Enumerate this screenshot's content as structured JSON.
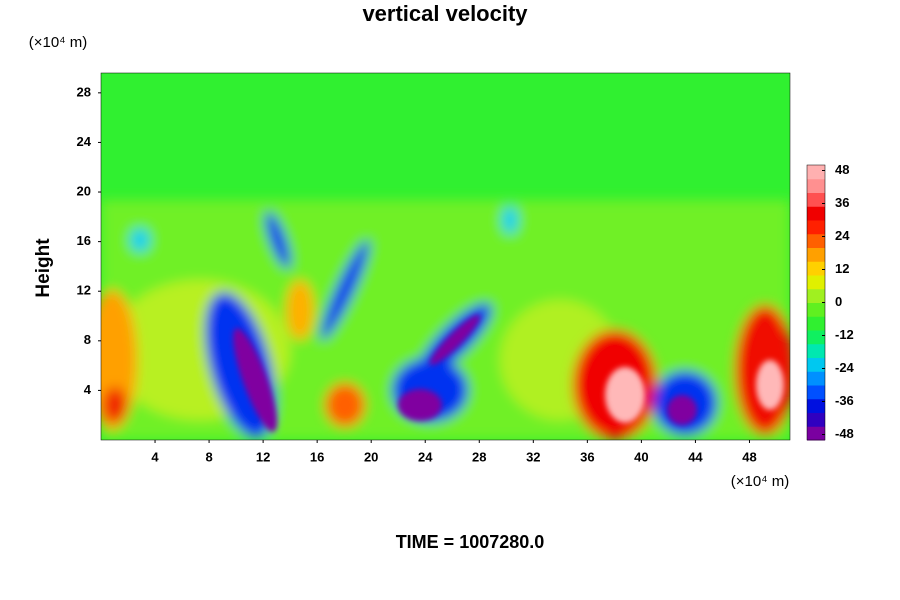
{
  "chart_data": {
    "type": "contour",
    "title": "vertical velocity",
    "x_unit": "(×10⁴ m)",
    "y_unit": "(×10⁴ m)",
    "ylabel": "Height",
    "footer": "TIME = 1007280.0",
    "xlim": [
      0,
      51
    ],
    "ylim": [
      0,
      29.6
    ],
    "xticks": [
      4,
      8,
      12,
      16,
      20,
      24,
      28,
      32,
      36,
      40,
      44,
      48
    ],
    "yticks": [
      4,
      8,
      12,
      16,
      20,
      24,
      28
    ],
    "colorbar": {
      "lim": [
        -50,
        50
      ],
      "ticks": [
        48,
        36,
        24,
        12,
        0,
        -12,
        -24,
        -36,
        -48
      ],
      "colors": [
        "#7a00a0",
        "#3000c0",
        "#0010e0",
        "#0050ff",
        "#0090ff",
        "#00c8f0",
        "#00e8b0",
        "#10f060",
        "#30f030",
        "#60f020",
        "#a0f020",
        "#e0f000",
        "#ffd000",
        "#ffa000",
        "#ff6000",
        "#ff2000",
        "#f00000",
        "#ff5050",
        "#ff9090",
        "#ffb0b0"
      ]
    }
  }
}
